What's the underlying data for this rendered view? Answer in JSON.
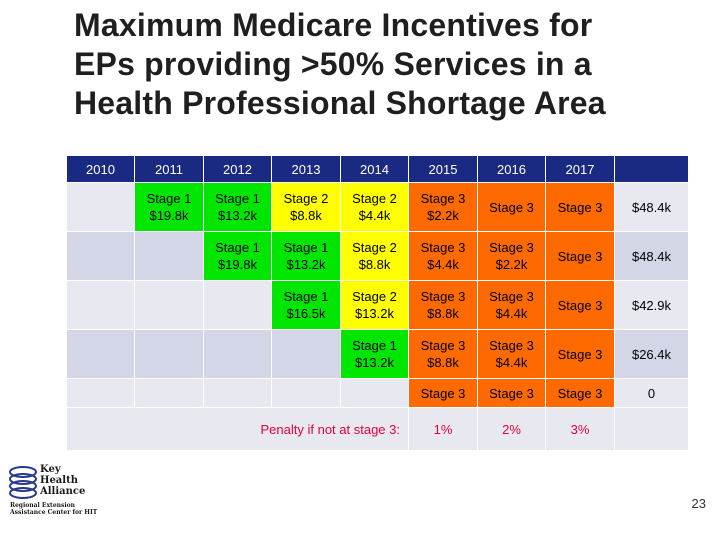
{
  "slide": {
    "title_lines": [
      "Maximum Medicare Incentives for",
      "EPs providing >50% Services in a",
      "Health Professional Shortage Area"
    ],
    "page_number": "23"
  },
  "table": {
    "headers": [
      "2010",
      "2011",
      "2012",
      "2013",
      "2014",
      "2015",
      "2016",
      "2017",
      ""
    ],
    "rows": [
      [
        {
          "l1": "",
          "l2": ""
        },
        {
          "l1": "Stage 1",
          "l2": "$19.8k"
        },
        {
          "l1": "Stage 1",
          "l2": "$13.2k"
        },
        {
          "l1": "Stage 2",
          "l2": "$8.8k"
        },
        {
          "l1": "Stage 2",
          "l2": "$4.4k"
        },
        {
          "l1": "Stage 3",
          "l2": "$2.2k"
        },
        {
          "l1": "Stage 3",
          "l2": ""
        },
        {
          "l1": "Stage 3",
          "l2": ""
        },
        {
          "l1": "$48.4k",
          "l2": ""
        }
      ],
      [
        {
          "l1": "",
          "l2": ""
        },
        {
          "l1": "",
          "l2": ""
        },
        {
          "l1": "Stage 1",
          "l2": "$19.8k"
        },
        {
          "l1": "Stage 1",
          "l2": "$13.2k"
        },
        {
          "l1": "Stage 2",
          "l2": "$8.8k"
        },
        {
          "l1": "Stage 3",
          "l2": "$4.4k"
        },
        {
          "l1": "Stage 3",
          "l2": "$2.2k"
        },
        {
          "l1": "Stage 3",
          "l2": ""
        },
        {
          "l1": "$48.4k",
          "l2": ""
        }
      ],
      [
        {
          "l1": "",
          "l2": ""
        },
        {
          "l1": "",
          "l2": ""
        },
        {
          "l1": "",
          "l2": ""
        },
        {
          "l1": "Stage 1",
          "l2": "$16.5k"
        },
        {
          "l1": "Stage 2",
          "l2": "$13.2k"
        },
        {
          "l1": "Stage 3",
          "l2": "$8.8k"
        },
        {
          "l1": "Stage 3",
          "l2": "$4.4k"
        },
        {
          "l1": "Stage 3",
          "l2": ""
        },
        {
          "l1": "$42.9k",
          "l2": ""
        }
      ],
      [
        {
          "l1": "",
          "l2": ""
        },
        {
          "l1": "",
          "l2": ""
        },
        {
          "l1": "",
          "l2": ""
        },
        {
          "l1": "",
          "l2": ""
        },
        {
          "l1": "Stage 1",
          "l2": "$13.2k"
        },
        {
          "l1": "Stage 3",
          "l2": "$8.8k"
        },
        {
          "l1": "Stage 3",
          "l2": "$4.4k"
        },
        {
          "l1": "Stage 3",
          "l2": ""
        },
        {
          "l1": "$26.4k",
          "l2": ""
        }
      ],
      [
        {
          "l1": "",
          "l2": ""
        },
        {
          "l1": "",
          "l2": ""
        },
        {
          "l1": "",
          "l2": ""
        },
        {
          "l1": "",
          "l2": ""
        },
        {
          "l1": "",
          "l2": ""
        },
        {
          "l1": "Stage 3",
          "l2": ""
        },
        {
          "l1": "Stage 3",
          "l2": ""
        },
        {
          "l1": "Stage 3",
          "l2": ""
        },
        {
          "l1": "0",
          "l2": ""
        }
      ]
    ],
    "penalty": {
      "label": "Penalty if not at stage 3:",
      "values": [
        "1%",
        "2%",
        "3%"
      ]
    }
  },
  "colors": {
    "header_bg": "#1a2a82",
    "stage1": "#00e600",
    "stage2": "#ffff00",
    "stage3": "#ff6a00",
    "penalty_text": "#e3003a"
  },
  "logo": {
    "brand_lines": [
      "Key",
      "Health",
      "Alliance"
    ],
    "sub_lines": [
      "Regional Extension",
      "Assistance Center for HIT"
    ]
  }
}
